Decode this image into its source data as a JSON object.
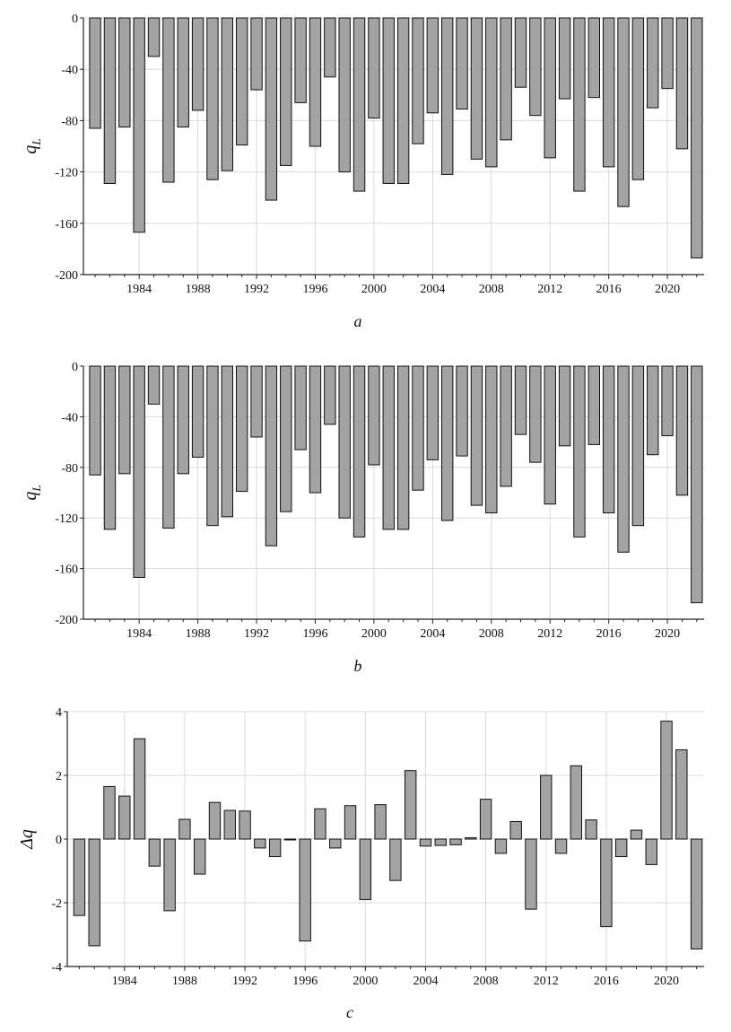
{
  "chart_data": [
    {
      "type": "bar",
      "panel_label": "a",
      "ylabel": "q",
      "ylabel_sub": "L",
      "xlabel": "",
      "ylim": [
        -200,
        0
      ],
      "yticks": [
        0,
        -40,
        -80,
        -120,
        -160,
        -200
      ],
      "ytick_labels": [
        "0",
        "-40",
        "-80",
        "-120",
        "-160",
        "-200"
      ],
      "xlim": [
        1980.2,
        2022.5
      ],
      "xticks": [
        1984,
        1988,
        1992,
        1996,
        2000,
        2004,
        2008,
        2012,
        2016,
        2020
      ],
      "xtick_labels": [
        "1984",
        "1988",
        "1992",
        "1996",
        "2000",
        "2004",
        "2008",
        "2012",
        "2016",
        "2020"
      ],
      "grid": true,
      "years": [
        1981,
        1982,
        1983,
        1984,
        1985,
        1986,
        1987,
        1988,
        1989,
        1990,
        1991,
        1992,
        1993,
        1994,
        1995,
        1996,
        1997,
        1998,
        1999,
        2000,
        2001,
        2002,
        2003,
        2004,
        2005,
        2006,
        2007,
        2008,
        2009,
        2010,
        2011,
        2012,
        2013,
        2014,
        2015,
        2016,
        2017,
        2018,
        2019,
        2020,
        2021,
        2022
      ],
      "values": [
        -86,
        -129,
        -85,
        -167,
        -30,
        -128,
        -85,
        -72,
        -126,
        -119,
        -99,
        -56,
        -142,
        -115,
        -66,
        -100,
        -46,
        -120,
        -135,
        -78,
        -129,
        -129,
        -98,
        -74,
        -122,
        -71,
        -110,
        -116,
        -95,
        -54,
        -76,
        -109,
        -63,
        -135,
        -62,
        -116,
        -147,
        -126,
        -70,
        -55,
        -102,
        -187
      ]
    },
    {
      "type": "bar",
      "panel_label": "b",
      "ylabel": "q",
      "ylabel_sub": "L",
      "xlabel": "",
      "ylim": [
        -200,
        0
      ],
      "yticks": [
        0,
        -40,
        -80,
        -120,
        -160,
        -200
      ],
      "ytick_labels": [
        "0",
        "-40",
        "-80",
        "-120",
        "-160",
        "-200"
      ],
      "xlim": [
        1980.2,
        2022.5
      ],
      "xticks": [
        1984,
        1988,
        1992,
        1996,
        2000,
        2004,
        2008,
        2012,
        2016,
        2020
      ],
      "xtick_labels": [
        "1984",
        "1988",
        "1992",
        "1996",
        "2000",
        "2004",
        "2008",
        "2012",
        "2016",
        "2020"
      ],
      "grid": true,
      "years": [
        1981,
        1982,
        1983,
        1984,
        1985,
        1986,
        1987,
        1988,
        1989,
        1990,
        1991,
        1992,
        1993,
        1994,
        1995,
        1996,
        1997,
        1998,
        1999,
        2000,
        2001,
        2002,
        2003,
        2004,
        2005,
        2006,
        2007,
        2008,
        2009,
        2010,
        2011,
        2012,
        2013,
        2014,
        2015,
        2016,
        2017,
        2018,
        2019,
        2020,
        2021,
        2022
      ],
      "values": [
        -86,
        -129,
        -85,
        -167,
        -30,
        -128,
        -85,
        -72,
        -126,
        -119,
        -99,
        -56,
        -142,
        -115,
        -66,
        -100,
        -46,
        -120,
        -135,
        -78,
        -129,
        -129,
        -98,
        -74,
        -122,
        -71,
        -110,
        -116,
        -95,
        -54,
        -76,
        -109,
        -63,
        -135,
        -62,
        -116,
        -147,
        -126,
        -70,
        -55,
        -102,
        -187
      ]
    },
    {
      "type": "bar",
      "panel_label": "c",
      "ylabel": "Δq",
      "ylabel_sub": "",
      "xlabel": "",
      "ylim": [
        -4,
        4
      ],
      "yticks": [
        4,
        2,
        0,
        -2,
        -4
      ],
      "ytick_labels": [
        "4",
        "2",
        "0",
        "-2",
        "-4"
      ],
      "xlim": [
        1980.2,
        2022.5
      ],
      "xticks": [
        1984,
        1988,
        1992,
        1996,
        2000,
        2004,
        2008,
        2012,
        2016,
        2020
      ],
      "xtick_labels": [
        "1984",
        "1988",
        "1992",
        "1996",
        "2000",
        "2004",
        "2008",
        "2012",
        "2016",
        "2020"
      ],
      "grid": true,
      "years": [
        1981,
        1982,
        1983,
        1984,
        1985,
        1986,
        1987,
        1988,
        1989,
        1990,
        1991,
        1992,
        1993,
        1994,
        1995,
        1996,
        1997,
        1998,
        1999,
        2000,
        2001,
        2002,
        2003,
        2004,
        2005,
        2006,
        2007,
        2008,
        2009,
        2010,
        2011,
        2012,
        2013,
        2014,
        2015,
        2016,
        2017,
        2018,
        2019,
        2020,
        2021,
        2022
      ],
      "values": [
        -2.4,
        -3.35,
        1.65,
        1.35,
        3.15,
        -0.85,
        -2.25,
        0.62,
        -1.1,
        1.15,
        0.9,
        0.88,
        -0.28,
        -0.55,
        -0.02,
        -3.2,
        0.95,
        -0.28,
        1.05,
        -1.9,
        1.08,
        -1.3,
        2.15,
        -0.22,
        -0.2,
        -0.18,
        0.04,
        1.25,
        -0.45,
        0.55,
        -2.2,
        2.0,
        -0.45,
        2.3,
        0.6,
        -2.75,
        -0.55,
        0.28,
        -0.8,
        3.7,
        2.8,
        -3.45
      ]
    }
  ]
}
